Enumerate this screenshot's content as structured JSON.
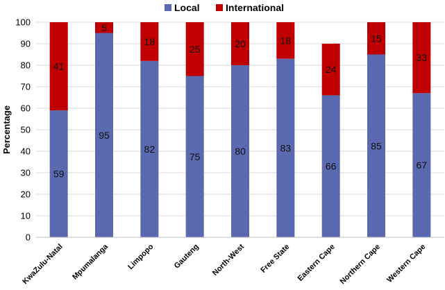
{
  "chart_data": {
    "type": "bar",
    "stacked": true,
    "categories": [
      "KwaZulu-Natal",
      "Mpumalanga",
      "Limpopo",
      "Gauteng",
      "North-West",
      "Free State",
      "Eastern Cape",
      "Northern Cape",
      "Western Cape"
    ],
    "series": [
      {
        "name": "Local",
        "color": "#5B69B0",
        "values": [
          59,
          95,
          82,
          75,
          80,
          83,
          66,
          85,
          67
        ]
      },
      {
        "name": "International",
        "color": "#C00000",
        "values": [
          41,
          5,
          18,
          25,
          20,
          18,
          24,
          15,
          33
        ]
      }
    ],
    "title": "",
    "xlabel": "",
    "ylabel": "Percentage",
    "ylim": [
      0,
      100
    ],
    "yticks": [
      0,
      10,
      20,
      30,
      40,
      50,
      60,
      70,
      80,
      90,
      100
    ],
    "grid": "horizontal",
    "legend": "top-center",
    "gridColor": "#d9d9d9"
  }
}
